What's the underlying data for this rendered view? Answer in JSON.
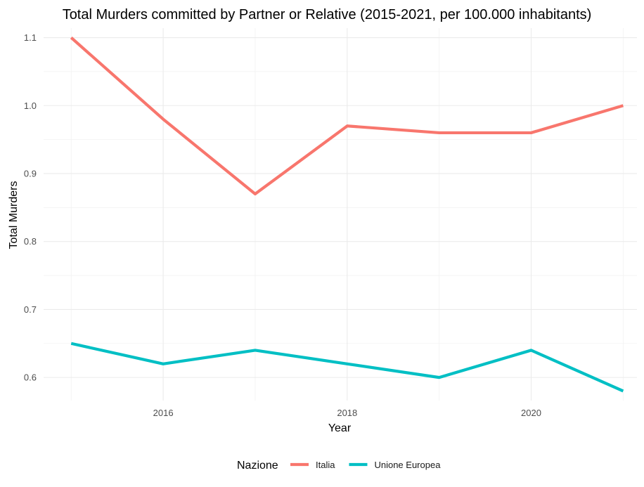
{
  "chart_data": {
    "type": "line",
    "title": "Total Murders committed by Partner or Relative (2015-2021, per 100.000 inhabitants)",
    "xlabel": "Year",
    "ylabel": "Total Murders",
    "x": [
      2015,
      2016,
      2017,
      2018,
      2019,
      2020,
      2021
    ],
    "xticks": [
      2016,
      2018,
      2020
    ],
    "xtick_labels": [
      "2016",
      "2018",
      "2020"
    ],
    "yticks": [
      0.6,
      0.7,
      0.8,
      0.9,
      1.0,
      1.1
    ],
    "ytick_labels": [
      "0.6",
      "0.7",
      "0.8",
      "0.9",
      "1.0",
      "1.1"
    ],
    "xlim": [
      2014.7,
      2021.15
    ],
    "ylim": [
      0.566,
      1.114
    ],
    "grid": true,
    "legend": {
      "title": "Nazione",
      "position": "bottom"
    },
    "series": [
      {
        "name": "Italia",
        "color": "#F8766D",
        "values": [
          1.1,
          0.98,
          0.87,
          0.97,
          0.96,
          0.96,
          1.0
        ]
      },
      {
        "name": "Unione Europea",
        "color": "#00BFC4",
        "values": [
          0.65,
          0.62,
          0.64,
          0.62,
          0.6,
          0.64,
          0.58
        ]
      }
    ]
  }
}
